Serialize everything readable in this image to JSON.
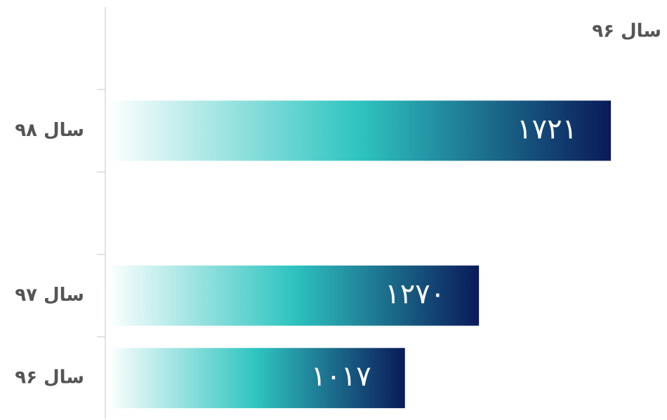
{
  "chart_data": {
    "type": "bar",
    "orientation": "horizontal",
    "title": "سال ۹۶",
    "categories": [
      null,
      "سال ۹۸",
      null,
      "سال ۹۷",
      "سال ۹۶"
    ],
    "values": [
      null,
      1721,
      null,
      1270,
      1017
    ],
    "value_labels": [
      null,
      "۱۷۲۱",
      null,
      "۱۲۷۰",
      "۱۰۱۷"
    ],
    "color": [
      "#ffffff",
      "#2ec4c0",
      "#0a1a5a"
    ],
    "xlim": [
      0,
      1920
    ]
  }
}
